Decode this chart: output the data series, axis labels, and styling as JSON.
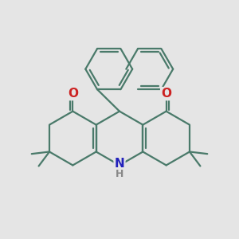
{
  "background_color": "#e5e5e5",
  "bond_color": "#4a7a6a",
  "bond_width": 1.6,
  "O_color": "#cc2222",
  "N_color": "#2222bb",
  "H_color": "#888888",
  "fig_width": 3.0,
  "fig_height": 3.0,
  "dpi": 100,
  "xlim": [
    0,
    10
  ],
  "ylim": [
    0,
    10
  ]
}
